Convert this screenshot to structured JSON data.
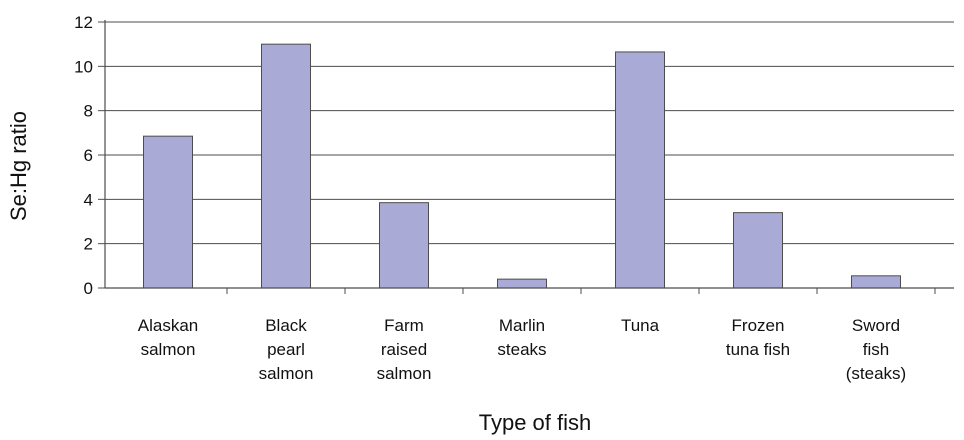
{
  "chart_data": {
    "type": "bar",
    "title": "",
    "xlabel": "Type of fish",
    "ylabel": "Se:Hg ratio",
    "ylim": [
      0,
      12
    ],
    "yticks": [
      0,
      2,
      4,
      6,
      8,
      10,
      12
    ],
    "grid": true,
    "legend": "none",
    "categories": [
      [
        "Alaskan",
        "salmon"
      ],
      [
        "Black",
        "pearl",
        "salmon"
      ],
      [
        "Farm",
        "raised",
        "salmon"
      ],
      [
        "Marlin",
        "steaks"
      ],
      [
        "Tuna"
      ],
      [
        "Frozen",
        "tuna fish"
      ],
      [
        "Sword",
        "fish",
        "(steaks)"
      ]
    ],
    "values": [
      6.85,
      11.0,
      3.85,
      0.4,
      10.65,
      3.4,
      0.55
    ],
    "colors": {
      "bar_fill": "#a9aad6",
      "bar_stroke": "#4d4d4d",
      "grid": "#4d4d4d",
      "axis": "#4d4d4d"
    }
  }
}
